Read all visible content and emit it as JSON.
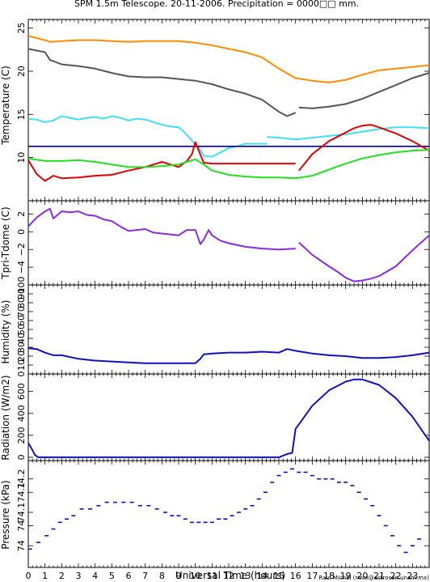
{
  "figure": {
    "title": "SPM 1.5m Telescope. 20-11-2006. Precipitation = 0000□□ mm.",
    "xlabel": "Universal Time (hours)",
    "credit": "Raul Michel (rmm@astrosen.unam.mx)"
  },
  "colors": {
    "orange": "#ff8c00",
    "gray": "#555555",
    "cyan": "#40e0f0",
    "navy": "#000080",
    "red": "#e00000",
    "green": "#20e020",
    "purple": "#8a2be2",
    "blue": "#1010c0"
  },
  "chart_data": [
    {
      "type": "line",
      "ylabel": "Temperature (C)",
      "xlim": [
        0,
        24
      ],
      "ylim": [
        5,
        26
      ],
      "xticks": [
        "0",
        "1",
        "2",
        "3",
        "4",
        "5",
        "6",
        "7",
        "8",
        "9",
        "10",
        "11",
        "12",
        "13",
        "14",
        "15",
        "16",
        "17",
        "18",
        "19",
        "20",
        "21",
        "22",
        "23"
      ],
      "yticks": [
        "10",
        "15",
        "20",
        "25"
      ],
      "series": [
        {
          "color": "orange",
          "x": [
            0,
            1,
            1.3,
            2,
            3,
            4,
            5,
            6,
            7,
            8,
            9,
            10,
            11,
            12,
            13,
            14,
            15,
            16,
            17,
            18,
            19,
            20,
            21,
            22,
            23,
            24
          ],
          "y": [
            24.1,
            23.6,
            23.4,
            23.5,
            23.6,
            23.6,
            23.5,
            23.4,
            23.5,
            23.5,
            23.5,
            23.3,
            23.0,
            22.6,
            22.2,
            21.6,
            20.3,
            19.2,
            18.9,
            18.7,
            19.0,
            19.6,
            20.1,
            20.3,
            20.5,
            20.7
          ]
        },
        {
          "color": "gray",
          "x": [
            0,
            1,
            1.3,
            2,
            3,
            4,
            5,
            6,
            7,
            8,
            9,
            10,
            11,
            12,
            13,
            14,
            15,
            15.5,
            16
          ],
          "y": [
            22.6,
            22.2,
            21.3,
            20.8,
            20.6,
            20.3,
            19.8,
            19.4,
            19.3,
            19.3,
            19.1,
            18.9,
            18.5,
            17.9,
            17.4,
            16.7,
            15.3,
            14.8,
            15.2
          ]
        },
        {
          "color": "gray",
          "x": [
            16.2,
            17,
            18,
            19,
            20,
            21,
            22,
            23,
            24
          ],
          "y": [
            15.8,
            15.7,
            15.9,
            16.2,
            16.8,
            17.6,
            18.4,
            19.2,
            19.8
          ]
        },
        {
          "color": "cyan",
          "x": [
            0,
            0.5,
            1,
            1.5,
            2,
            2.5,
            3,
            3.5,
            4,
            4.5,
            5,
            5.5,
            6,
            6.5,
            7,
            7.5,
            8,
            8.5,
            9,
            9.3,
            9.7,
            10,
            10.3,
            10.5,
            11,
            11.5,
            12,
            12.5,
            13,
            14,
            14.3
          ],
          "y": [
            14.5,
            14.4,
            14.1,
            14.3,
            14.8,
            14.6,
            14.4,
            14.6,
            14.7,
            14.5,
            14.8,
            14.6,
            14.3,
            14.5,
            14.4,
            14.1,
            13.8,
            13.6,
            13.5,
            13.0,
            12.2,
            11.5,
            10.9,
            10.2,
            10.1,
            10.6,
            11.1,
            11.3,
            11.6,
            11.6,
            11.6
          ]
        },
        {
          "color": "cyan",
          "x": [
            14.3,
            15,
            16,
            17,
            18,
            19,
            20,
            21,
            22,
            23,
            24
          ],
          "y": [
            12.4,
            12.3,
            12.1,
            12.3,
            12.5,
            12.7,
            13.0,
            13.3,
            13.5,
            13.5,
            13.4
          ]
        },
        {
          "color": "navy",
          "x": [
            0,
            24
          ],
          "y": [
            11.3,
            11.3
          ]
        },
        {
          "color": "red",
          "x": [
            0,
            0.5,
            1,
            1.5,
            2,
            3,
            4,
            5,
            6,
            7,
            8,
            8.5,
            9,
            9.5,
            9.8,
            10,
            10.5,
            11,
            12,
            13,
            14,
            15,
            16
          ],
          "y": [
            9.7,
            8.1,
            7.3,
            7.9,
            7.6,
            7.7,
            7.9,
            8.0,
            8.5,
            8.9,
            9.5,
            9.2,
            8.9,
            9.6,
            10.4,
            11.8,
            9.4,
            9.3,
            9.3,
            9.3,
            9.3,
            9.3,
            9.3
          ]
        },
        {
          "color": "red",
          "x": [
            16.2,
            16.5,
            17,
            18,
            19,
            19.5,
            20,
            20.5,
            21,
            22,
            23,
            24
          ],
          "y": [
            8.5,
            9.2,
            10.4,
            11.9,
            12.9,
            13.4,
            13.7,
            13.8,
            13.5,
            12.8,
            11.9,
            10.8
          ]
        },
        {
          "color": "green",
          "x": [
            0,
            1,
            2,
            3,
            4,
            5,
            6,
            7,
            8,
            9,
            9.5,
            10,
            10.5,
            11,
            12,
            13,
            14,
            15,
            16,
            17,
            18,
            19,
            20,
            21,
            22,
            23,
            24
          ],
          "y": [
            9.9,
            9.6,
            9.6,
            9.7,
            9.5,
            9.2,
            8.9,
            8.9,
            9.0,
            9.2,
            9.5,
            9.8,
            9.2,
            8.5,
            8.0,
            7.8,
            7.7,
            7.7,
            7.6,
            7.9,
            8.6,
            9.3,
            9.9,
            10.3,
            10.6,
            10.8,
            10.9
          ]
        }
      ]
    },
    {
      "type": "line",
      "ylabel": "Tpri-Tdome (C)",
      "xlim": [
        0,
        24
      ],
      "ylim": [
        -6,
        3.5
      ],
      "xticks": [
        "0",
        "1",
        "2",
        "3",
        "4",
        "5",
        "6",
        "7",
        "8",
        "9",
        "10",
        "11",
        "12",
        "13",
        "14",
        "15",
        "16",
        "17",
        "18",
        "19",
        "20",
        "21",
        "22",
        "23"
      ],
      "yticks": [
        "−4",
        "−2",
        "0",
        "2"
      ],
      "series": [
        {
          "color": "purple",
          "x": [
            0,
            0.5,
            1,
            1.3,
            1.5,
            2,
            2.5,
            3,
            3.5,
            4,
            4.5,
            5,
            5.5,
            6,
            6.5,
            7,
            7.5,
            8,
            8.5,
            9,
            9.5,
            10,
            10.3,
            10.5,
            10.8,
            11,
            11.5,
            12,
            13,
            14,
            15,
            16
          ],
          "y": [
            0.6,
            1.6,
            2.3,
            2.6,
            1.5,
            2.3,
            2.2,
            2.3,
            1.9,
            1.8,
            1.4,
            1.2,
            0.6,
            0.1,
            0.2,
            0.3,
            -0.1,
            -0.2,
            -0.3,
            -0.4,
            0.2,
            0.2,
            -1.4,
            -0.9,
            0.2,
            -0.4,
            -1.0,
            -1.3,
            -1.7,
            -1.9,
            -2.0,
            -1.9
          ]
        },
        {
          "color": "purple",
          "x": [
            16.2,
            17,
            18,
            18.5,
            19,
            19.5,
            20,
            20.5,
            21,
            22,
            23,
            24
          ],
          "y": [
            -1.2,
            -2.6,
            -3.9,
            -4.5,
            -5.2,
            -5.6,
            -5.5,
            -5.3,
            -5.0,
            -3.9,
            -2.1,
            -0.4
          ]
        }
      ]
    },
    {
      "type": "line",
      "ylabel": "Humidity (%)",
      "xlim": [
        0,
        24
      ],
      "ylim": [
        0,
        100
      ],
      "xticks": [
        "0",
        "1",
        "2",
        "3",
        "4",
        "5",
        "6",
        "7",
        "8",
        "9",
        "10",
        "11",
        "12",
        "13",
        "14",
        "15",
        "16",
        "17",
        "18",
        "19",
        "20",
        "21",
        "22",
        "23"
      ],
      "yticks": [
        "0",
        "10",
        "20",
        "30",
        "40",
        "50",
        "60",
        "70",
        "80",
        "90",
        "100"
      ],
      "series": [
        {
          "color": "blue",
          "x": [
            0,
            0.5,
            1,
            1.5,
            2,
            3,
            4,
            5,
            6,
            7,
            8,
            9,
            10,
            10.3,
            10.5,
            11,
            12,
            13,
            14,
            15,
            15.5,
            16,
            17,
            18,
            19,
            20,
            21,
            22,
            23,
            24
          ],
          "y": [
            29,
            28,
            24,
            21,
            21,
            17,
            15,
            14,
            13,
            12,
            12,
            12,
            12,
            17,
            22,
            23,
            24,
            24,
            25,
            24,
            28,
            26,
            23,
            21,
            20,
            18,
            18,
            19,
            21,
            24
          ]
        }
      ]
    },
    {
      "type": "line",
      "ylabel": "Radiation (W/m2)",
      "xlim": [
        0,
        24
      ],
      "ylim": [
        -30,
        760
      ],
      "xticks": [
        "0",
        "1",
        "2",
        "3",
        "4",
        "5",
        "6",
        "7",
        "8",
        "9",
        "10",
        "11",
        "12",
        "13",
        "14",
        "15",
        "16",
        "17",
        "18",
        "19",
        "20",
        "21",
        "22",
        "23"
      ],
      "yticks": [
        "0",
        "200",
        "400",
        "600"
      ],
      "series": [
        {
          "color": "blue",
          "x": [
            0,
            0.2,
            0.4,
            0.6,
            1,
            2,
            3,
            4,
            5,
            6,
            7,
            8,
            9,
            10,
            11,
            12,
            13,
            14,
            15,
            15.5,
            15.8,
            16,
            16.2,
            17,
            18,
            19,
            19.5,
            20,
            21,
            22,
            23,
            24
          ],
          "y": [
            130,
            80,
            20,
            0,
            0,
            0,
            0,
            0,
            0,
            0,
            0,
            0,
            0,
            0,
            0,
            0,
            0,
            0,
            0,
            30,
            40,
            260,
            300,
            470,
            610,
            690,
            710,
            710,
            660,
            540,
            370,
            150
          ]
        }
      ]
    },
    {
      "type": "scatter",
      "ylabel": "Pressure (kPa)",
      "xlim": [
        0,
        24
      ],
      "ylim": [
        73.905,
        74.225
      ],
      "xticks": [
        "0",
        "1",
        "2",
        "3",
        "4",
        "5",
        "6",
        "7",
        "8",
        "9",
        "10",
        "11",
        "12",
        "13",
        "14",
        "15",
        "16",
        "17",
        "18",
        "19",
        "20",
        "21",
        "22",
        "23"
      ],
      "yticks": [
        "74",
        "74",
        "74.1",
        "74.1",
        "74.2"
      ],
      "series": [
        {
          "color": "blue",
          "x": [
            0.1,
            0.6,
            1.1,
            1.5,
            1.9,
            2.3,
            2.7,
            3.2,
            3.7,
            4.2,
            4.7,
            5.2,
            5.7,
            6.2,
            6.7,
            7.2,
            7.7,
            8.2,
            8.6,
            9.0,
            9.4,
            9.8,
            10.2,
            10.6,
            11.0,
            11.4,
            11.8,
            12.2,
            12.6,
            13.0,
            13.4,
            13.8,
            14.2,
            14.6,
            15.0,
            15.4,
            15.8,
            16.2,
            16.6,
            17.0,
            17.4,
            17.8,
            18.2,
            18.6,
            19.0,
            19.4,
            19.8,
            20.2,
            20.6,
            21.0,
            21.4,
            21.8,
            22.2,
            22.6,
            23.0,
            23.4
          ],
          "y": [
            73.96,
            73.98,
            74.0,
            74.02,
            74.04,
            74.05,
            74.06,
            74.08,
            74.08,
            74.09,
            74.1,
            74.1,
            74.1,
            74.1,
            74.09,
            74.09,
            74.08,
            74.07,
            74.06,
            74.06,
            74.05,
            74.04,
            74.04,
            74.04,
            74.04,
            74.05,
            74.05,
            74.06,
            74.07,
            74.08,
            74.09,
            74.11,
            74.13,
            74.16,
            74.18,
            74.19,
            74.2,
            74.19,
            74.19,
            74.18,
            74.17,
            74.17,
            74.17,
            74.16,
            74.16,
            74.15,
            74.13,
            74.11,
            74.09,
            74.06,
            74.03,
            74.0,
            73.97,
            73.95,
            73.97,
            73.99
          ]
        }
      ]
    }
  ]
}
